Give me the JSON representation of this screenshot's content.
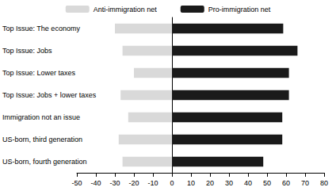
{
  "chart_data": {
    "type": "bar",
    "orientation": "horizontal",
    "categories": [
      "Top Issue: The economy",
      "Top Issue: Jobs",
      "Top Issue: Lower taxes",
      "Top Issue: Jobs + lower taxes",
      "Immigration not an issue",
      "US-born, third generation",
      "US-born, fourth generation"
    ],
    "series": [
      {
        "name": "Anti-immigration net",
        "color": "#d9d9d9",
        "values": [
          -30,
          -26,
          -20,
          -27,
          -23,
          -28,
          -26
        ]
      },
      {
        "name": "Pro-immigration net",
        "color": "#1a1a1a",
        "values": [
          58.5,
          66,
          61.5,
          61.5,
          58,
          58,
          48
        ]
      }
    ],
    "xlim": [
      -50,
      80
    ],
    "xticks": [
      -50,
      -40,
      -30,
      -20,
      -10,
      0,
      10,
      20,
      30,
      40,
      50,
      60,
      70,
      80
    ],
    "grid": false,
    "legend": "top"
  }
}
